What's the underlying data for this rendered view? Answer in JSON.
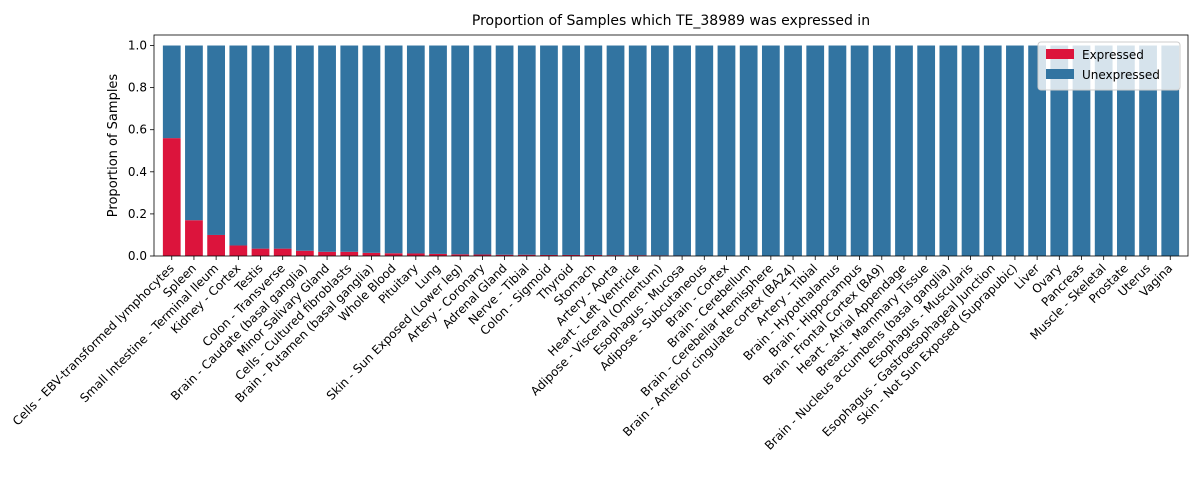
{
  "chart_data": {
    "type": "bar",
    "stacked": true,
    "title": "Proportion of Samples which TE_38989 was expressed in",
    "xlabel": "",
    "ylabel": "Proportion of Samples",
    "ylim": [
      0,
      1.05
    ],
    "yticks": [
      "0.0",
      "0.2",
      "0.4",
      "0.6",
      "0.8",
      "1.0"
    ],
    "legend_position": "top-right",
    "grid": false,
    "categories": [
      "Cells - EBV-transformed lymphocytes",
      "Spleen",
      "Small Intestine - Terminal Ileum",
      "Kidney - Cortex",
      "Testis",
      "Colon - Transverse",
      "Brain - Caudate (basal ganglia)",
      "Minor Salivary Gland",
      "Cells - Cultured fibroblasts",
      "Brain - Putamen (basal ganglia)",
      "Whole Blood",
      "Pituitary",
      "Lung",
      "Skin - Sun Exposed (Lower leg)",
      "Artery - Coronary",
      "Adrenal Gland",
      "Nerve - Tibial",
      "Colon - Sigmoid",
      "Thyroid",
      "Stomach",
      "Artery - Aorta",
      "Heart - Left Ventricle",
      "Adipose - Visceral (Omentum)",
      "Esophagus - Mucosa",
      "Adipose - Subcutaneous",
      "Brain - Cortex",
      "Brain - Cerebellum",
      "Brain - Cerebellar Hemisphere",
      "Brain - Anterior cingulate cortex (BA24)",
      "Artery - Tibial",
      "Brain - Hypothalamus",
      "Brain - Hippocampus",
      "Brain - Frontal Cortex (BA9)",
      "Heart - Atrial Appendage",
      "Breast - Mammary Tissue",
      "Brain - Nucleus accumbens (basal ganglia)",
      "Esophagus - Muscularis",
      "Esophagus - Gastroesophageal Junction",
      "Skin - Not Sun Exposed (Suprapubic)",
      "Liver",
      "Ovary",
      "Pancreas",
      "Muscle - Skeletal",
      "Prostate",
      "Uterus",
      "Vagina"
    ],
    "series": [
      {
        "name": "Expressed",
        "color": "#dc143c",
        "values": [
          0.56,
          0.17,
          0.1,
          0.05,
          0.035,
          0.035,
          0.025,
          0.02,
          0.02,
          0.015,
          0.013,
          0.012,
          0.01,
          0.008,
          0.007,
          0.006,
          0.006,
          0.005,
          0.005,
          0.005,
          0.004,
          0.004,
          0.003,
          0.002,
          0,
          0,
          0,
          0,
          0,
          0,
          0,
          0,
          0,
          0,
          0,
          0,
          0,
          0,
          0,
          0,
          0,
          0,
          0,
          0,
          0,
          0
        ]
      },
      {
        "name": "Unexpressed",
        "color": "#3274a1",
        "values": [
          0.44,
          0.83,
          0.9,
          0.95,
          0.965,
          0.965,
          0.975,
          0.98,
          0.98,
          0.985,
          0.987,
          0.988,
          0.99,
          0.992,
          0.993,
          0.994,
          0.994,
          0.995,
          0.995,
          0.995,
          0.996,
          0.996,
          0.997,
          0.998,
          1,
          1,
          1,
          1,
          1,
          1,
          1,
          1,
          1,
          1,
          1,
          1,
          1,
          1,
          1,
          1,
          1,
          1,
          1,
          1,
          1,
          1
        ]
      }
    ]
  }
}
